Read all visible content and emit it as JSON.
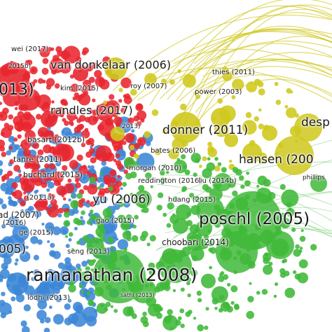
{
  "network": {
    "clusters": [
      {
        "name": "red",
        "color": "#e8262f"
      },
      {
        "name": "blue",
        "color": "#3b86d6"
      },
      {
        "name": "green",
        "color": "#3fb838"
      },
      {
        "name": "yellow",
        "color": "#cfc81d"
      }
    ],
    "labels": {
      "wei_2017": "wei (2017)",
      "ref_2015b": "2015b)",
      "van_donkelaar_2006": "van donkelaar (2006)",
      "ref_013": "013)",
      "kim_2015": "kim (2015)",
      "roy_2007": "roy (2007)",
      "thies_2011": "thies (2011)",
      "power_2003": "power (2003)",
      "randles_2017": "randles (2017)",
      "ref_2013": "2013)",
      "donner_2011": "donner (2011)",
      "desp": "desp",
      "basart_2012b": "basart (2012b)",
      "bates_2006": "bates (2006)",
      "hansen_200": "hansen (200",
      "tanre_2011": "tanre (2011)",
      "buchard_2015": "buchard (2015)",
      "morgan_2010": "morgan (2010)",
      "reddington_2016": "reddington (2016)",
      "liu_2014b": "liu (2014b)",
      "phillips": "phillips",
      "ref_2011a": "(2011a)",
      "yu_2006": "yu (2006)",
      "huang_2015": "huang (2015)",
      "ad_2007": "ad (2007)",
      "ref_2016": "(2016)",
      "gao_2015": "gao (2015)",
      "ge_2015": "ge (2015)",
      "poschl_2005": "poschl (2005)",
      "choobari_2014": "choobari (2014)",
      "ref_005": "005)",
      "seng_2013": "seng (2013)",
      "ramanathan_2008": "ramanathan (2008)",
      "lodhi_2013": "lodhi (2013)",
      "sathi_2013": "sathi (2013)"
    }
  }
}
